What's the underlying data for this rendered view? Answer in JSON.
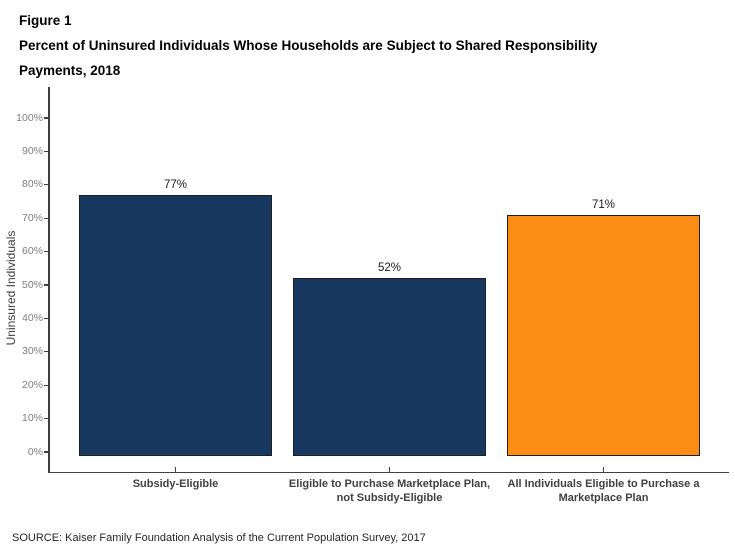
{
  "figure": {
    "label": "Figure 1",
    "title_lines": [
      "Percent of Uninsured Individuals Whose Households are Subject to Shared Responsibility",
      "Payments, 2018"
    ]
  },
  "chart_data": {
    "type": "bar",
    "title": "Figure 1: Percent of Uninsured Individuals Whose Households are Subject to Shared Responsibility Payments, 2018",
    "xlabel": "",
    "ylabel": "Uninsured Individuals",
    "ylim": [
      0,
      100
    ],
    "ytick_step": 10,
    "ytick_labels": [
      "0%",
      "10%",
      "20%",
      "30%",
      "40%",
      "50%",
      "60%",
      "70%",
      "80%",
      "90%",
      "100%"
    ],
    "grid": false,
    "legend": "none",
    "categories": [
      {
        "lines": [
          "Subsidy-Eligible"
        ]
      },
      {
        "lines": [
          "Eligible to Purchase Marketplace Plan,",
          "not Subsidy-Eligible"
        ]
      },
      {
        "lines": [
          "All Individuals Eligible to Purchase a",
          "Marketplace Plan"
        ]
      }
    ],
    "values": [
      77,
      52,
      71
    ],
    "value_labels": [
      "77%",
      "52%",
      "71%"
    ],
    "bar_colors": [
      "#17375E",
      "#17375E",
      "#FB8C15"
    ]
  },
  "source": "SOURCE: Kaiser Family Foundation Analysis of the Current Population Survey, 2017",
  "colors": {
    "navy": "#17375E",
    "orange": "#FB8C15",
    "axis": "#404040",
    "ytick_text": "#7f7f7f",
    "category_text": "#404040",
    "value_text": "#1a1a1a",
    "bar_border": "#1f1f1f"
  }
}
